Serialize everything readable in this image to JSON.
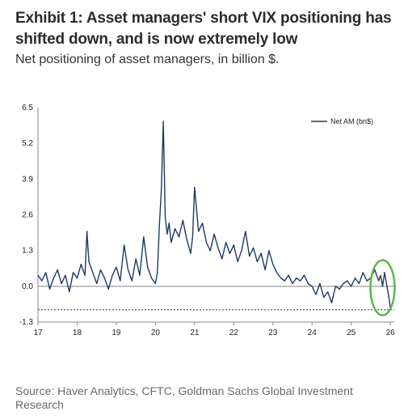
{
  "title": "Exhibit 1: Asset managers' short VIX positioning has shifted down, and is now extremely low",
  "subtitle": "Net positioning of asset managers, in billion $.",
  "source": "Source: Haver Analytics, CFTC, Goldman Sachs Global Investment Research",
  "chart_data": {
    "type": "line",
    "ylim": [
      -1.3,
      6.5
    ],
    "yticks": [
      "6.5",
      "5.2",
      "3.9",
      "2.6",
      "1.3",
      "0.0",
      "-1.3"
    ],
    "ytick_values": [
      6.5,
      5.2,
      3.9,
      2.6,
      1.3,
      0.0,
      -1.3
    ],
    "xlim": [
      17,
      26.1
    ],
    "xticks": [
      "17",
      "18",
      "19",
      "20",
      "21",
      "22",
      "23",
      "24",
      "25",
      "26"
    ],
    "xtick_values": [
      17,
      18,
      19,
      20,
      21,
      22,
      23,
      24,
      25,
      26
    ],
    "legend": "top-right",
    "grid": false,
    "reference_line": -0.85,
    "line_color": "#1f3864",
    "highlight_color": "#5cb84a",
    "series": [
      {
        "name": "Net AM (bn$)",
        "x": [
          17.0,
          17.1,
          17.2,
          17.3,
          17.4,
          17.5,
          17.6,
          17.7,
          17.8,
          17.9,
          18.0,
          18.1,
          18.2,
          18.25,
          18.3,
          18.4,
          18.5,
          18.6,
          18.7,
          18.8,
          18.9,
          19.0,
          19.1,
          19.2,
          19.3,
          19.4,
          19.5,
          19.6,
          19.7,
          19.8,
          19.9,
          20.0,
          20.05,
          20.1,
          20.15,
          20.2,
          20.25,
          20.3,
          20.35,
          20.4,
          20.5,
          20.6,
          20.7,
          20.8,
          20.9,
          20.95,
          21.0,
          21.1,
          21.2,
          21.3,
          21.4,
          21.5,
          21.6,
          21.7,
          21.8,
          21.9,
          22.0,
          22.1,
          22.2,
          22.3,
          22.4,
          22.5,
          22.6,
          22.7,
          22.8,
          22.9,
          23.0,
          23.1,
          23.2,
          23.3,
          23.4,
          23.5,
          23.6,
          23.7,
          23.8,
          23.9,
          24.0,
          24.1,
          24.2,
          24.3,
          24.4,
          24.5,
          24.6,
          24.7,
          24.8,
          24.9,
          25.0,
          25.1,
          25.2,
          25.3,
          25.4,
          25.5,
          25.6,
          25.7,
          25.75,
          25.8,
          25.85,
          25.9,
          25.95,
          26.0
        ],
        "y": [
          0.4,
          0.2,
          0.5,
          -0.1,
          0.3,
          0.6,
          0.1,
          0.4,
          -0.2,
          0.5,
          0.3,
          0.8,
          0.4,
          2.0,
          0.9,
          0.5,
          0.1,
          0.6,
          0.3,
          -0.1,
          0.4,
          0.7,
          0.2,
          1.5,
          0.6,
          0.2,
          1.0,
          0.4,
          1.8,
          0.7,
          0.3,
          0.1,
          0.5,
          2.2,
          3.5,
          6.0,
          2.5,
          1.9,
          2.3,
          1.6,
          2.1,
          1.8,
          2.4,
          1.7,
          1.2,
          1.8,
          3.6,
          2.0,
          2.3,
          1.6,
          1.3,
          1.9,
          1.4,
          1.0,
          1.6,
          1.2,
          1.5,
          0.9,
          1.3,
          2.0,
          1.1,
          1.4,
          0.9,
          1.2,
          0.6,
          1.3,
          0.8,
          0.5,
          0.3,
          0.2,
          0.4,
          0.1,
          0.3,
          0.2,
          0.4,
          0.1,
          0.0,
          -0.3,
          0.1,
          -0.4,
          -0.2,
          -0.6,
          0.0,
          -0.1,
          0.1,
          0.2,
          0.0,
          0.3,
          0.1,
          0.5,
          0.2,
          0.3,
          0.6,
          0.2,
          0.4,
          0.0,
          0.5,
          0.1,
          -0.3,
          -0.8
        ]
      }
    ]
  }
}
